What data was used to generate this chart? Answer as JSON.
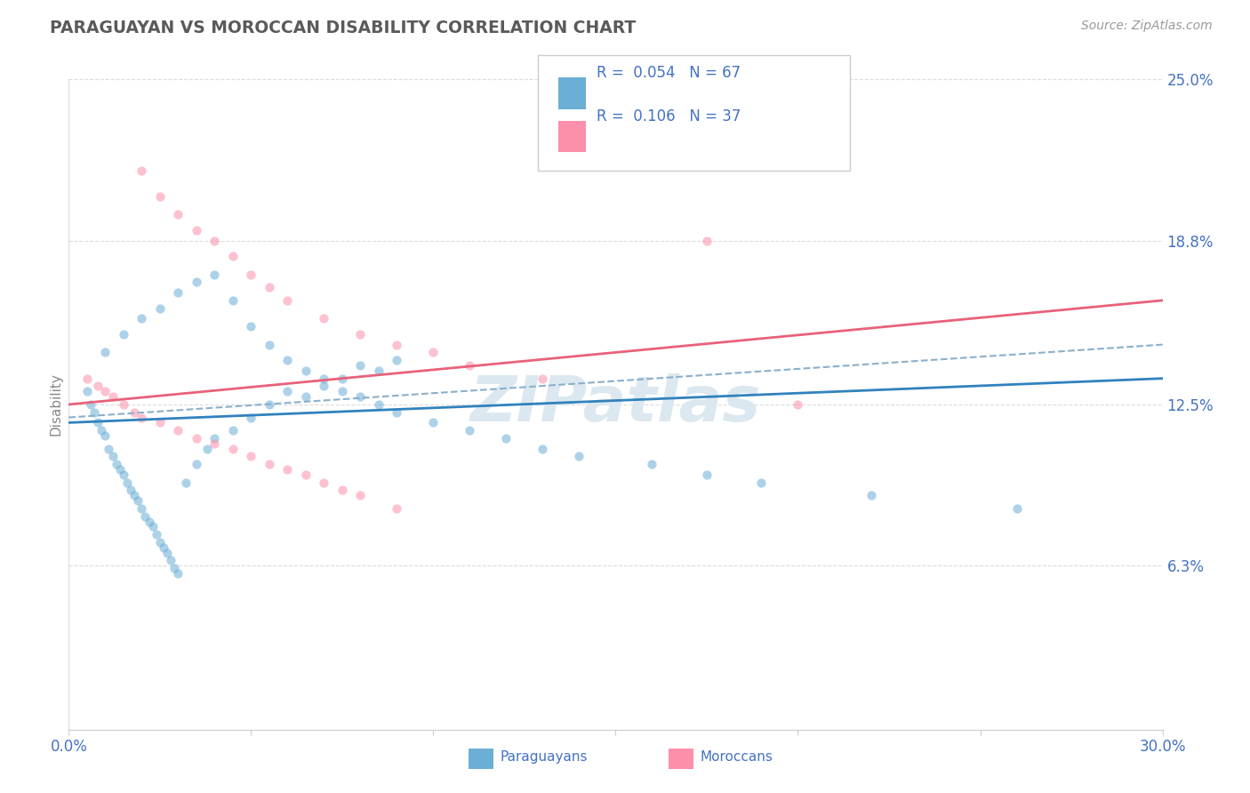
{
  "title": "PARAGUAYAN VS MOROCCAN DISABILITY CORRELATION CHART",
  "source": "Source: ZipAtlas.com",
  "ylabel": "Disability",
  "xlim": [
    0.0,
    30.0
  ],
  "ylim": [
    0.0,
    25.0
  ],
  "blue_color": "#6baed6",
  "pink_color": "#fc8faa",
  "blue_line_color": "#3182bd",
  "pink_line_color": "#e8627a",
  "dashed_line_color": "#8ab0cc",
  "title_color": "#5a5a5a",
  "axis_label_color": "#4472c4",
  "watermark_text": "ZIPatlas",
  "watermark_color": "#dce8f0",
  "background_color": "#ffffff",
  "grid_color": "#cccccc",
  "legend_R1": "R =  0.054",
  "legend_N1": "N = 67",
  "legend_R2": "R =  0.106",
  "legend_N2": "N = 37",
  "paraguayan_x": [
    0.5,
    0.6,
    0.7,
    0.8,
    0.9,
    1.0,
    1.1,
    1.2,
    1.3,
    1.4,
    1.5,
    1.6,
    1.7,
    1.8,
    1.9,
    2.0,
    2.1,
    2.2,
    2.3,
    2.4,
    2.5,
    2.6,
    2.7,
    2.8,
    2.9,
    3.0,
    3.2,
    3.5,
    3.8,
    4.0,
    4.5,
    5.0,
    5.5,
    6.0,
    6.5,
    7.0,
    7.5,
    8.0,
    8.5,
    9.0,
    1.0,
    1.5,
    2.0,
    2.5,
    3.0,
    3.5,
    4.0,
    4.5,
    5.0,
    5.5,
    6.0,
    6.5,
    7.0,
    7.5,
    8.0,
    8.5,
    9.0,
    10.0,
    11.0,
    12.0,
    13.0,
    14.0,
    16.0,
    17.5,
    19.0,
    22.0,
    26.0
  ],
  "paraguayan_y": [
    13.0,
    12.5,
    12.2,
    11.8,
    11.5,
    11.3,
    10.8,
    10.5,
    10.2,
    10.0,
    9.8,
    9.5,
    9.2,
    9.0,
    8.8,
    8.5,
    8.2,
    8.0,
    7.8,
    7.5,
    7.2,
    7.0,
    6.8,
    6.5,
    6.2,
    6.0,
    9.5,
    10.2,
    10.8,
    11.2,
    11.5,
    12.0,
    12.5,
    13.0,
    12.8,
    13.2,
    13.5,
    14.0,
    13.8,
    14.2,
    14.5,
    15.2,
    15.8,
    16.2,
    16.8,
    17.2,
    17.5,
    16.5,
    15.5,
    14.8,
    14.2,
    13.8,
    13.5,
    13.0,
    12.8,
    12.5,
    12.2,
    11.8,
    11.5,
    11.2,
    10.8,
    10.5,
    10.2,
    9.8,
    9.5,
    9.0,
    8.5
  ],
  "moroccan_x": [
    0.5,
    0.8,
    1.0,
    1.2,
    1.5,
    1.8,
    2.0,
    2.5,
    3.0,
    3.5,
    4.0,
    4.5,
    5.0,
    5.5,
    6.0,
    6.5,
    7.0,
    7.5,
    8.0,
    9.0,
    2.0,
    2.5,
    3.0,
    3.5,
    4.0,
    4.5,
    5.0,
    5.5,
    6.0,
    7.0,
    8.0,
    9.0,
    10.0,
    11.0,
    13.0,
    17.5,
    20.0
  ],
  "moroccan_y": [
    13.5,
    13.2,
    13.0,
    12.8,
    12.5,
    12.2,
    12.0,
    11.8,
    11.5,
    11.2,
    11.0,
    10.8,
    10.5,
    10.2,
    10.0,
    9.8,
    9.5,
    9.2,
    9.0,
    8.5,
    21.5,
    20.5,
    19.8,
    19.2,
    18.8,
    18.2,
    17.5,
    17.0,
    16.5,
    15.8,
    15.2,
    14.8,
    14.5,
    14.0,
    13.5,
    18.8,
    12.5
  ],
  "par_line_x0": 0.0,
  "par_line_y0": 11.8,
  "par_line_x1": 30.0,
  "par_line_y1": 13.5,
  "mor_line_x0": 0.0,
  "mor_line_y0": 12.5,
  "mor_line_x1": 30.0,
  "mor_line_y1": 16.5,
  "dash_line_x0": 0.0,
  "dash_line_y0": 12.0,
  "dash_line_x1": 30.0,
  "dash_line_y1": 14.8
}
